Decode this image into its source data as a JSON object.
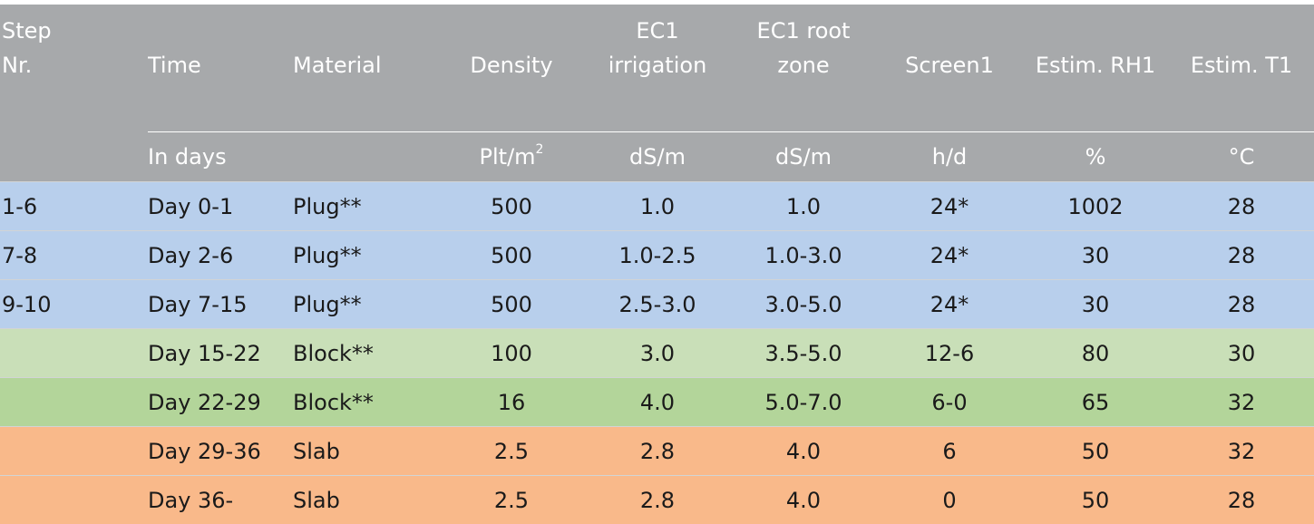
{
  "header": {
    "step": [
      "Step",
      "Nr."
    ],
    "time": "Time",
    "material": "Material",
    "density": "Density",
    "ec1_irrigation": [
      "EC1",
      "irrigation"
    ],
    "ec1_root_zone": [
      "EC1 root",
      "zone"
    ],
    "screen1": "Screen1",
    "estim_rh1": "Estim. RH1",
    "estim_t1": "Estim. T1"
  },
  "units": {
    "time": "In days",
    "material": "",
    "density_base": "Plt/m",
    "density_sup": "2",
    "ec1_irrigation": "dS/m",
    "ec1_root_zone": "dS/m",
    "screen1": "h/d",
    "estim_rh1": "%",
    "estim_t1": "°C"
  },
  "rows": [
    {
      "step": "1-6",
      "time": "Day 0-1",
      "material": "Plug**",
      "density": "500",
      "ec_irr": "1.0",
      "ec_root": "1.0",
      "screen": "24*",
      "rh": "1002",
      "t": "28",
      "color": "#b8cfec"
    },
    {
      "step": "7-8",
      "time": "Day 2-6",
      "material": "Plug**",
      "density": "500",
      "ec_irr": "1.0-2.5",
      "ec_root": "1.0-3.0",
      "screen": "24*",
      "rh": "30",
      "t": "28",
      "color": "#b8cfec"
    },
    {
      "step": "9-10",
      "time": "Day 7-15",
      "material": "Plug**",
      "density": "500",
      "ec_irr": "2.5-3.0",
      "ec_root": "3.0-5.0",
      "screen": "24*",
      "rh": "30",
      "t": "28",
      "color": "#b8cfec"
    },
    {
      "step": "",
      "time": "Day 15-22",
      "material": "Block**",
      "density": "100",
      "ec_irr": "3.0",
      "ec_root": "3.5-5.0",
      "screen": "12-6",
      "rh": "80",
      "t": "30",
      "color": "#c9dfb8"
    },
    {
      "step": "",
      "time": "Day 22-29",
      "material": "Block**",
      "density": "16",
      "ec_irr": "4.0",
      "ec_root": "5.0-7.0",
      "screen": "6-0",
      "rh": "65",
      "t": "32",
      "color": "#b3d59a"
    },
    {
      "step": "",
      "time": "Day 29-36",
      "material": "Slab",
      "density": "2.5",
      "ec_irr": "2.8",
      "ec_root": "4.0",
      "screen": "6",
      "rh": "50",
      "t": "32",
      "color": "#f9b98a"
    },
    {
      "step": "",
      "time": "Day 36-",
      "material": "Slab",
      "density": "2.5",
      "ec_irr": "2.8",
      "ec_root": "4.0",
      "screen": "0",
      "rh": "50",
      "t": "28",
      "color": "#f9b98a"
    }
  ]
}
